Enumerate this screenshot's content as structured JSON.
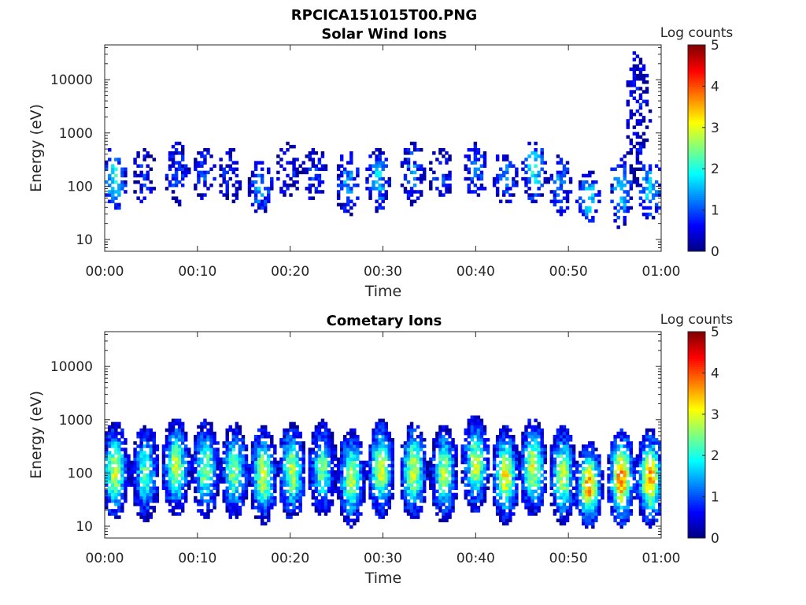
{
  "figure": {
    "title": "RPCICA151015T00.PNG",
    "colormap": "jet",
    "colors": {
      "background": "#ffffff",
      "axes": "#262626"
    }
  },
  "chart_data": [
    {
      "type": "heatmap",
      "title": "Solar Wind Ions",
      "xlabel": "Time",
      "ylabel": "Energy (eV)",
      "yscale": "log",
      "ylim": [
        6,
        45000
      ],
      "xlim": [
        "00:00",
        "01:00"
      ],
      "x_ticks": [
        "00:00",
        "00:10",
        "00:20",
        "00:30",
        "00:40",
        "00:50",
        "01:00"
      ],
      "y_ticks": [
        10,
        100,
        1000,
        10000
      ],
      "y_tick_labels": [
        "10",
        "100",
        "1000",
        "10000"
      ],
      "colorbar": {
        "label": "Log counts",
        "range": [
          0,
          5
        ],
        "ticks": [
          "0",
          "1",
          "2",
          "3",
          "4",
          "5"
        ]
      },
      "intensity": "sparse",
      "bursts": [
        {
          "t": 1.1,
          "e": 140,
          "spread": 0.35,
          "peak": 2.0
        },
        {
          "t": 4.3,
          "e": 160,
          "spread": 0.3,
          "peak": 0.8
        },
        {
          "t": 7.8,
          "e": 170,
          "spread": 0.35,
          "peak": 1.0
        },
        {
          "t": 10.8,
          "e": 170,
          "spread": 0.3,
          "peak": 0.9
        },
        {
          "t": 13.5,
          "e": 160,
          "spread": 0.3,
          "peak": 0.8
        },
        {
          "t": 16.8,
          "e": 100,
          "spread": 0.3,
          "peak": 1.5
        },
        {
          "t": 19.8,
          "e": 200,
          "spread": 0.3,
          "peak": 0.8
        },
        {
          "t": 22.6,
          "e": 180,
          "spread": 0.3,
          "peak": 0.8
        },
        {
          "t": 26.2,
          "e": 110,
          "spread": 0.35,
          "peak": 1.4
        },
        {
          "t": 29.5,
          "e": 130,
          "spread": 0.35,
          "peak": 1.6
        },
        {
          "t": 33.2,
          "e": 180,
          "spread": 0.35,
          "peak": 1.2
        },
        {
          "t": 36.2,
          "e": 170,
          "spread": 0.3,
          "peak": 1.0
        },
        {
          "t": 40.0,
          "e": 200,
          "spread": 0.3,
          "peak": 1.2
        },
        {
          "t": 43.2,
          "e": 150,
          "spread": 0.3,
          "peak": 1.3
        },
        {
          "t": 46.3,
          "e": 200,
          "spread": 0.35,
          "peak": 1.9
        },
        {
          "t": 49.1,
          "e": 120,
          "spread": 0.35,
          "peak": 1.2
        },
        {
          "t": 52.2,
          "e": 60,
          "spread": 0.3,
          "peak": 1.8
        },
        {
          "t": 55.7,
          "e": 80,
          "spread": 0.4,
          "peak": 1.6
        },
        {
          "t": 58.8,
          "e": 90,
          "spread": 0.35,
          "peak": 1.7
        },
        {
          "t": 57.5,
          "e": 2000,
          "spread": 0.75,
          "peak": 0.6
        }
      ]
    },
    {
      "type": "heatmap",
      "title": "Cometary Ions",
      "xlabel": "Time",
      "ylabel": "Energy (eV)",
      "yscale": "log",
      "ylim": [
        6,
        45000
      ],
      "xlim": [
        "00:00",
        "01:00"
      ],
      "x_ticks": [
        "00:00",
        "00:10",
        "00:20",
        "00:30",
        "00:40",
        "00:50",
        "01:00"
      ],
      "y_ticks": [
        10,
        100,
        1000,
        10000
      ],
      "y_tick_labels": [
        "10",
        "100",
        "1000",
        "10000"
      ],
      "colorbar": {
        "label": "Log counts",
        "range": [
          0,
          5
        ],
        "ticks": [
          "0",
          "1",
          "2",
          "3",
          "4",
          "5"
        ]
      },
      "intensity": "dense",
      "bursts": [
        {
          "t": 1.1,
          "e": 110,
          "spread": 0.45,
          "peak": 2.9
        },
        {
          "t": 4.4,
          "e": 100,
          "spread": 0.45,
          "peak": 2.3
        },
        {
          "t": 7.7,
          "e": 130,
          "spread": 0.45,
          "peak": 2.9
        },
        {
          "t": 10.9,
          "e": 120,
          "spread": 0.45,
          "peak": 2.6
        },
        {
          "t": 14.0,
          "e": 110,
          "spread": 0.45,
          "peak": 2.6
        },
        {
          "t": 17.1,
          "e": 90,
          "spread": 0.45,
          "peak": 3.0
        },
        {
          "t": 20.2,
          "e": 110,
          "spread": 0.45,
          "peak": 2.8
        },
        {
          "t": 23.5,
          "e": 120,
          "spread": 0.45,
          "peak": 2.4
        },
        {
          "t": 26.6,
          "e": 80,
          "spread": 0.45,
          "peak": 2.9
        },
        {
          "t": 29.8,
          "e": 120,
          "spread": 0.45,
          "peak": 3.0
        },
        {
          "t": 33.3,
          "e": 110,
          "spread": 0.45,
          "peak": 2.9
        },
        {
          "t": 36.6,
          "e": 100,
          "spread": 0.45,
          "peak": 2.7
        },
        {
          "t": 40.0,
          "e": 150,
          "spread": 0.45,
          "peak": 2.9
        },
        {
          "t": 43.2,
          "e": 90,
          "spread": 0.45,
          "peak": 3.1
        },
        {
          "t": 46.2,
          "e": 130,
          "spread": 0.45,
          "peak": 3.0
        },
        {
          "t": 49.4,
          "e": 90,
          "spread": 0.45,
          "peak": 2.9
        },
        {
          "t": 52.2,
          "e": 60,
          "spread": 0.4,
          "peak": 3.7
        },
        {
          "t": 55.7,
          "e": 80,
          "spread": 0.45,
          "peak": 3.8
        },
        {
          "t": 58.8,
          "e": 80,
          "spread": 0.45,
          "peak": 3.6
        }
      ]
    }
  ]
}
